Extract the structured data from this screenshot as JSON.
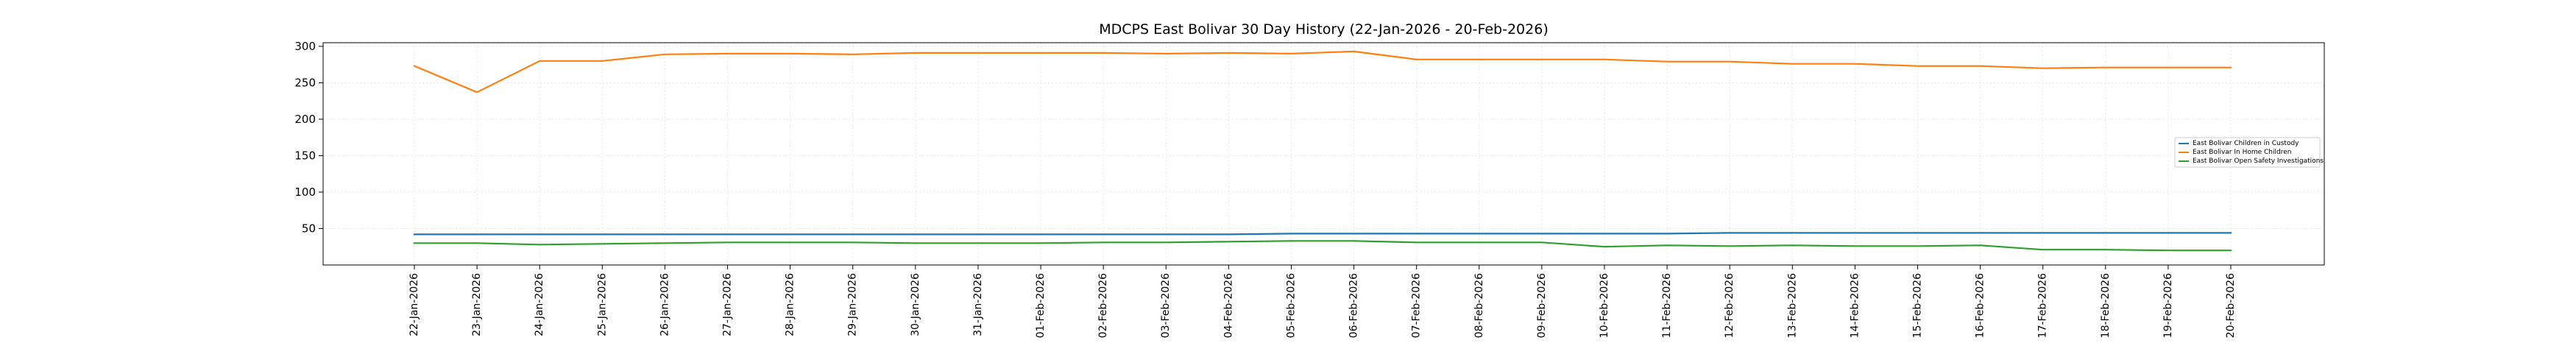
{
  "chart_data": {
    "type": "line",
    "title": "MDCPS East Bolivar 30 Day History (22-Jan-2026 - 20-Feb-2026)",
    "xlabel": "",
    "ylabel": "",
    "ylim": [
      0,
      305
    ],
    "yticks": [
      "50",
      "100",
      "150",
      "200",
      "250",
      "300"
    ],
    "grid": true,
    "legend_position": "center-right",
    "categories": [
      "22-Jan-2026",
      "23-Jan-2026",
      "24-Jan-2026",
      "25-Jan-2026",
      "26-Jan-2026",
      "27-Jan-2026",
      "28-Jan-2026",
      "29-Jan-2026",
      "30-Jan-2026",
      "31-Jan-2026",
      "01-Feb-2026",
      "02-Feb-2026",
      "03-Feb-2026",
      "04-Feb-2026",
      "05-Feb-2026",
      "06-Feb-2026",
      "07-Feb-2026",
      "08-Feb-2026",
      "09-Feb-2026",
      "10-Feb-2026",
      "11-Feb-2026",
      "12-Feb-2026",
      "13-Feb-2026",
      "14-Feb-2026",
      "15-Feb-2026",
      "16-Feb-2026",
      "17-Feb-2026",
      "18-Feb-2026",
      "19-Feb-2026",
      "20-Feb-2026"
    ],
    "series": [
      {
        "name": "East Bolivar Children in Custody",
        "color": "#1f77b4",
        "values": [
          42,
          42,
          42,
          42,
          42,
          42,
          42,
          42,
          42,
          42,
          42,
          42,
          42,
          42,
          43,
          43,
          43,
          43,
          43,
          43,
          43,
          44,
          44,
          44,
          44,
          44,
          44,
          44,
          44,
          44
        ]
      },
      {
        "name": "East Bolivar In Home Children",
        "color": "#ff7f0e",
        "values": [
          273,
          237,
          280,
          280,
          289,
          290,
          290,
          289,
          291,
          291,
          291,
          291,
          290,
          291,
          290,
          293,
          282,
          282,
          282,
          282,
          279,
          279,
          276,
          276,
          273,
          273,
          270,
          271,
          271,
          271
        ]
      },
      {
        "name": "East Bolivar Open Safety Investigations",
        "color": "#2ca02c",
        "values": [
          30,
          30,
          28,
          29,
          30,
          31,
          31,
          31,
          30,
          30,
          30,
          31,
          31,
          32,
          33,
          33,
          31,
          31,
          31,
          25,
          27,
          26,
          27,
          26,
          26,
          27,
          21,
          21,
          20,
          20
        ]
      }
    ]
  }
}
